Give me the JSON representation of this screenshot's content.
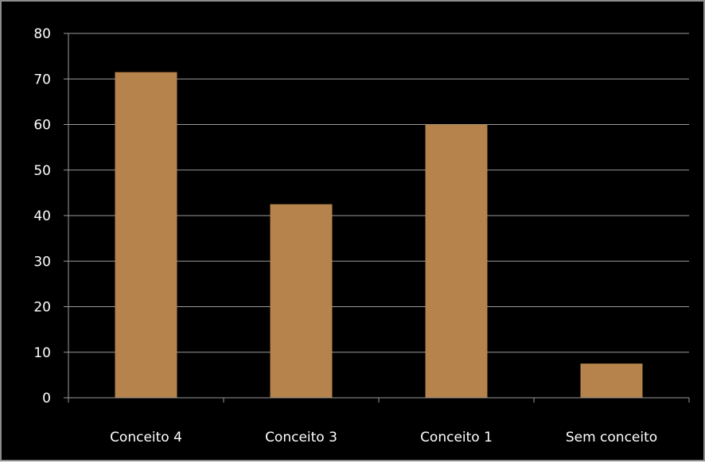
{
  "colors": {
    "background": "#000000",
    "border": "#8c8c8c",
    "bar": "#b5834b",
    "gridline": "#9a9a9a",
    "text": "#ffffff"
  },
  "chart_data": {
    "type": "bar",
    "categories": [
      "Conceito 4",
      "Conceito 3",
      "Conceito 1",
      "Sem conceito"
    ],
    "values": [
      71.5,
      42.5,
      60,
      7.5
    ],
    "yticks": [
      "0",
      "10",
      "20",
      "30",
      "40",
      "50",
      "60",
      "70",
      "80"
    ],
    "ylim": [
      0,
      80
    ],
    "grid": true,
    "legend": "none"
  }
}
